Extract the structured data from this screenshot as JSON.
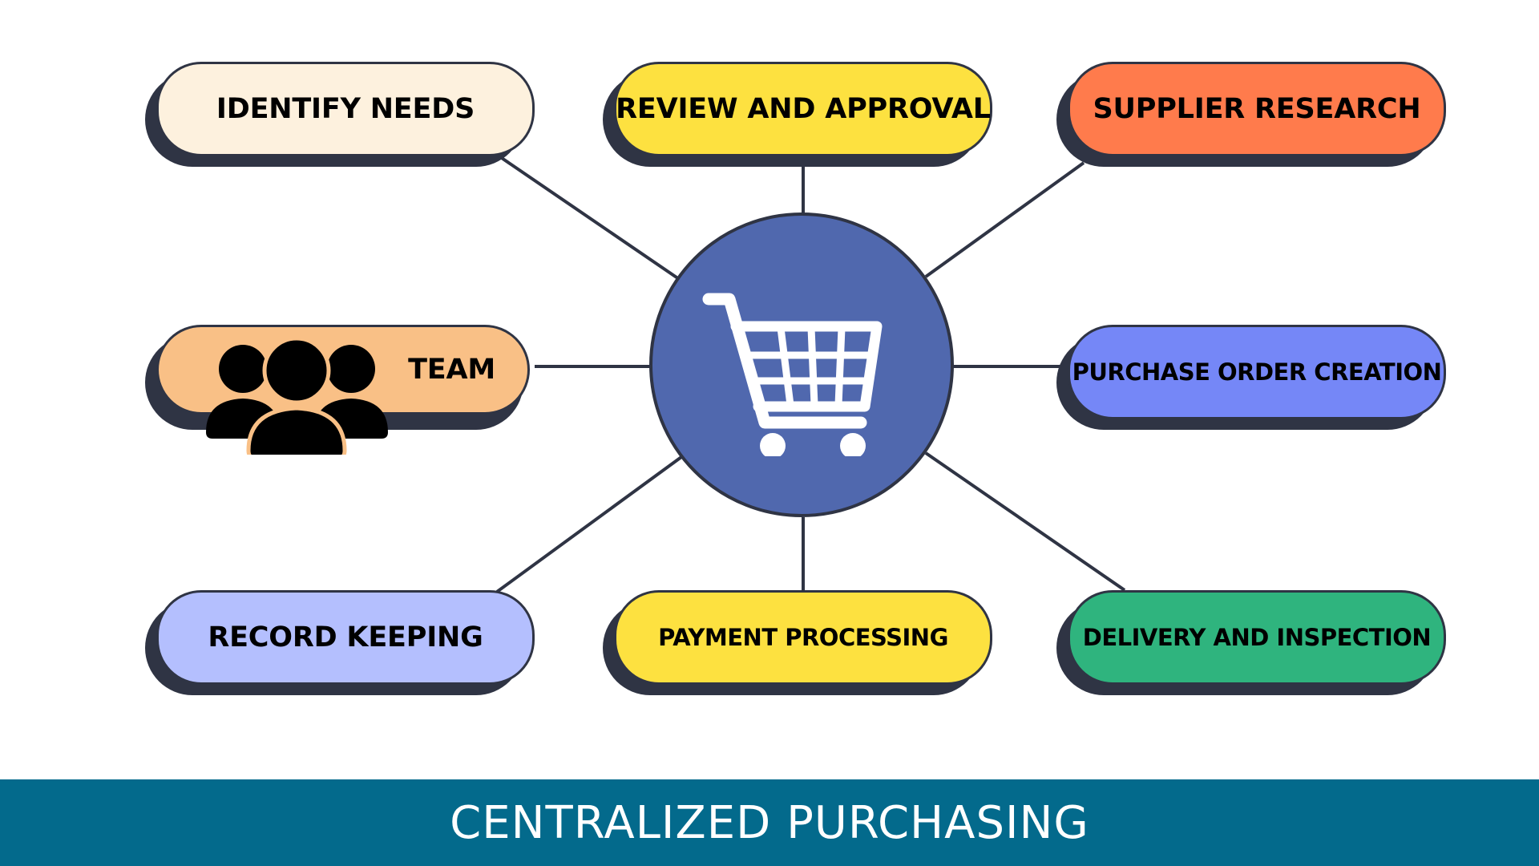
{
  "diagram": {
    "hub": {
      "icon": "shopping-cart-icon",
      "color": "#5068ae"
    },
    "nodes": [
      {
        "id": "identify-needs",
        "label": "IDENTIFY NEEDS",
        "color": "#fdf1de"
      },
      {
        "id": "review-and-approval",
        "label": "REVIEW AND APPROVAL",
        "color": "#fde140"
      },
      {
        "id": "supplier-research",
        "label": "SUPPLIER RESEARCH",
        "color": "#ff7b4c"
      },
      {
        "id": "team",
        "label": "TEAM",
        "color": "#f9c086",
        "icon": "team-people-icon"
      },
      {
        "id": "purchase-order-creation",
        "label": "PURCHASE ORDER CREATION",
        "color": "#7587f7"
      },
      {
        "id": "record-keeping",
        "label": "RECORD KEEPING",
        "color": "#b4bffe"
      },
      {
        "id": "payment-processing",
        "label": "PAYMENT PROCESSING",
        "color": "#fde140"
      },
      {
        "id": "delivery-and-inspection",
        "label": "DELIVERY AND INSPECTION",
        "color": "#2fb47e"
      }
    ]
  },
  "footer": {
    "title": "CENTRALIZED PURCHASING",
    "color": "#036a8c"
  }
}
